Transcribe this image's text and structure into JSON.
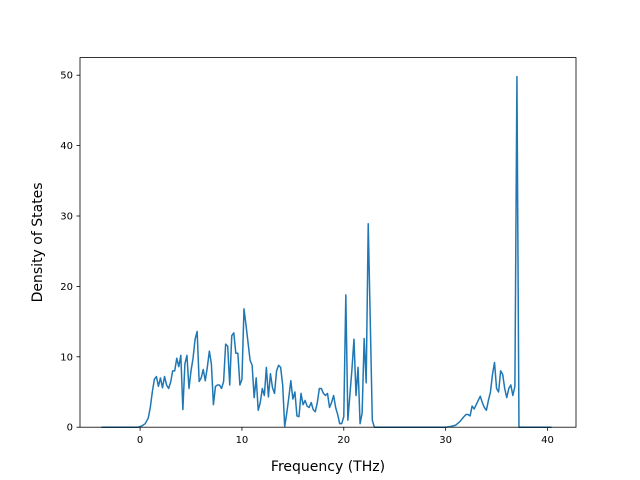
{
  "chart_data": {
    "type": "line",
    "title": "",
    "xlabel": "Frequency (THz)",
    "ylabel": "Density of States",
    "xlim": [
      -5.9,
      42.8
    ],
    "ylim": [
      0,
      52.5
    ],
    "xticks": [
      0,
      10,
      20,
      30,
      40
    ],
    "yticks": [
      0,
      10,
      20,
      30,
      40,
      50
    ],
    "grid": false,
    "legend": "none",
    "colors": {
      "line": "#1f77b4",
      "axes": "#000000",
      "background": "#ffffff"
    },
    "series": [
      {
        "x": [
          -3.8,
          -0.2,
          0.2,
          0.5,
          0.8,
          1.0,
          1.2,
          1.4,
          1.6,
          1.8,
          2.0,
          2.2,
          2.4,
          2.6,
          2.8,
          3.0,
          3.2,
          3.4,
          3.6,
          3.8,
          4.0,
          4.2,
          4.4,
          4.6,
          4.8,
          5.0,
          5.2,
          5.4,
          5.6,
          5.8,
          6.0,
          6.2,
          6.4,
          6.6,
          6.8,
          7.0,
          7.2,
          7.4,
          7.6,
          7.8,
          8.0,
          8.2,
          8.4,
          8.6,
          8.8,
          9.0,
          9.2,
          9.4,
          9.6,
          9.8,
          10.0,
          10.2,
          10.4,
          10.6,
          10.8,
          11.0,
          11.2,
          11.4,
          11.6,
          11.8,
          12.0,
          12.2,
          12.4,
          12.6,
          12.8,
          13.0,
          13.2,
          13.4,
          13.6,
          13.8,
          14.0,
          14.2,
          14.4,
          14.6,
          14.8,
          15.0,
          15.2,
          15.4,
          15.6,
          15.8,
          16.0,
          16.2,
          16.4,
          16.6,
          16.8,
          17.0,
          17.2,
          17.4,
          17.6,
          17.8,
          18.0,
          18.2,
          18.4,
          18.6,
          18.8,
          19.0,
          19.2,
          19.4,
          19.6,
          19.8,
          20.0,
          20.2,
          20.4,
          20.6,
          20.8,
          21.0,
          21.2,
          21.4,
          21.6,
          21.8,
          22.0,
          22.2,
          22.4,
          22.6,
          22.8,
          23.0,
          23.2,
          23.4,
          23.6,
          23.8,
          24.0,
          24.2,
          24.4,
          24.6,
          24.8,
          25.0,
          30.0,
          30.5,
          31.0,
          31.4,
          31.8,
          32.0,
          32.2,
          32.4,
          32.6,
          32.8,
          33.0,
          33.2,
          33.4,
          33.6,
          33.8,
          34.0,
          34.2,
          34.4,
          34.6,
          34.8,
          35.0,
          35.2,
          35.4,
          35.6,
          35.8,
          36.0,
          36.2,
          36.4,
          36.6,
          36.8,
          37.0,
          37.2,
          40.4
        ],
        "y": [
          0,
          0,
          0.2,
          0.5,
          1.3,
          2.8,
          5.0,
          6.8,
          7.2,
          5.8,
          7.0,
          5.6,
          7.2,
          6.0,
          5.5,
          6.4,
          8.0,
          8.0,
          9.8,
          8.6,
          10.2,
          2.5,
          9.0,
          10.2,
          5.5,
          8.0,
          9.8,
          12.5,
          13.6,
          6.5,
          7.0,
          8.2,
          6.6,
          8.5,
          10.8,
          9.0,
          3.2,
          5.8,
          6.0,
          6.0,
          5.5,
          6.5,
          11.8,
          11.5,
          6.0,
          13.0,
          13.4,
          10.5,
          10.5,
          6.0,
          6.8,
          16.8,
          14.5,
          12.0,
          9.5,
          8.8,
          4.2,
          7.0,
          2.4,
          3.5,
          5.5,
          4.5,
          8.5,
          4.3,
          7.6,
          5.6,
          4.8,
          8.0,
          8.8,
          8.5,
          6.0,
          0.1,
          2.0,
          4.2,
          6.6,
          4.0,
          5.0,
          1.6,
          1.5,
          4.8,
          3.2,
          3.8,
          3.0,
          2.8,
          3.5,
          2.5,
          2.2,
          3.5,
          5.5,
          5.5,
          4.8,
          4.5,
          4.8,
          2.8,
          3.5,
          4.5,
          2.8,
          1.8,
          0.5,
          0.5,
          1.5,
          18.8,
          1.0,
          4.6,
          8.2,
          12.5,
          4.5,
          8.5,
          0.5,
          2.0,
          12.6,
          6.3,
          28.9,
          15.0,
          1.0,
          0,
          0,
          0,
          0,
          0,
          0,
          0,
          0,
          0,
          0,
          0,
          0,
          0.1,
          0.3,
          0.8,
          1.5,
          1.8,
          1.8,
          1.6,
          3.0,
          2.6,
          3.2,
          3.8,
          4.4,
          3.5,
          2.8,
          2.4,
          3.8,
          5.0,
          7.5,
          9.2,
          5.5,
          5.0,
          8.0,
          7.5,
          5.5,
          4.2,
          5.5,
          6.0,
          4.5,
          5.8,
          49.8,
          0,
          0
        ]
      }
    ]
  }
}
